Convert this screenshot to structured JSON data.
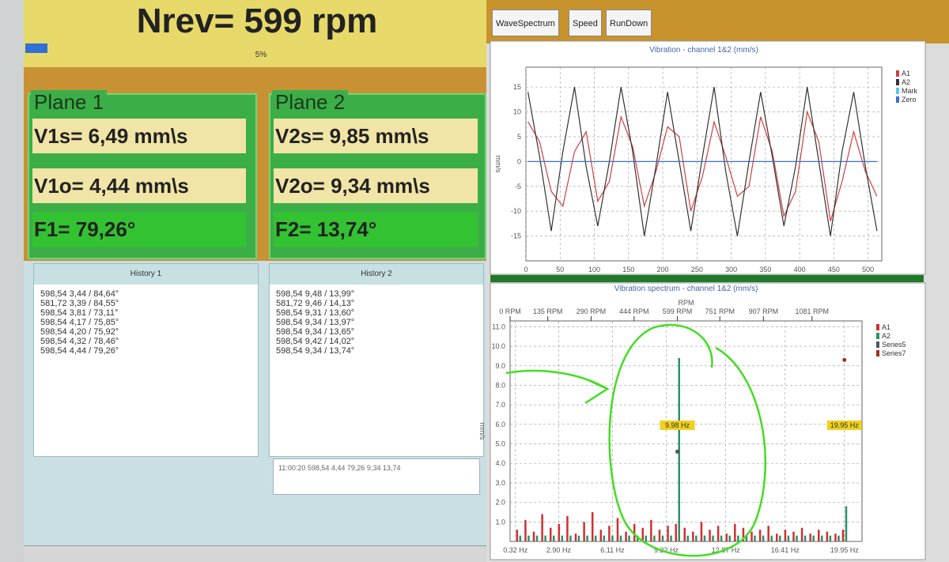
{
  "header": {
    "title": "Nrev= 599 rpm",
    "progress": "5%"
  },
  "planes": [
    {
      "title": "Plane 1",
      "vs": "V1s= 6,49 mm\\s",
      "vo": "V1o= 4,44 mm\\s",
      "f": "F1= 79,26°"
    },
    {
      "title": "Plane 2",
      "vs": "V2s= 9,85 mm\\s",
      "vo": "V2o= 9,34 mm\\s",
      "f": "F2= 13,74°"
    }
  ],
  "history": [
    {
      "title": "History 1",
      "entries": [
        "598,54 3,44 / 84,64°",
        "581,72 3,39 / 84,55°",
        "598,54 3,81 / 73,11°",
        "598,54 4,17 / 75,85°",
        "598,54 4,20 / 75,92°",
        "598,54 4,32 / 78,46°",
        "598,54 4,44 / 79,26°"
      ]
    },
    {
      "title": "History 2",
      "entries": [
        "598,54 9,48 / 13,99°",
        "581,72 9,46 / 14,13°",
        "598,54 9,31 / 13,60°",
        "598,54 9,34 / 13,97°",
        "598,54 9,34 / 13,65°",
        "598,54 9,42 / 14,02°",
        "598,54 9,34 / 13,74°"
      ]
    }
  ],
  "log": "11:00:20 598,54 4,44 79,26 9,34 13,74",
  "tabs": [
    "WaveSpectrum",
    "Speed",
    "RunDown"
  ],
  "chart_data": [
    {
      "type": "line",
      "title": "Vibration - channel 1&2 (mm/s)",
      "y_label": "mm/s",
      "x": [
        3,
        20,
        37,
        54,
        71,
        88,
        105,
        122,
        139,
        156,
        173,
        190,
        207,
        224,
        241,
        258,
        275,
        292,
        309,
        326,
        343,
        360,
        377,
        394,
        411,
        428,
        445,
        462,
        479,
        496,
        513
      ],
      "series": [
        {
          "name": "A1",
          "color": "#d04040",
          "values": [
            8,
            4,
            -6,
            -9,
            2,
            6,
            -8,
            -4,
            9,
            3,
            -9,
            -2,
            7,
            5,
            -10,
            -3,
            8,
            1,
            -7,
            -5,
            9,
            2,
            -11,
            -6,
            10,
            4,
            -12,
            -4,
            6,
            -2,
            -7
          ]
        },
        {
          "name": "A2",
          "color": "#333333",
          "values": [
            14,
            1,
            -14,
            2,
            15,
            -1,
            -13,
            0,
            15,
            2,
            -15,
            -1,
            14,
            0,
            -14,
            1,
            15,
            -2,
            -15,
            0,
            14,
            1,
            -13,
            -1,
            15,
            0,
            -15,
            2,
            14,
            -1,
            -14
          ]
        },
        {
          "name": "Mark",
          "color": "#5bc8e8",
          "values": [
            null,
            null,
            null,
            null,
            null,
            null,
            null,
            null,
            null,
            null,
            null,
            null,
            null,
            null,
            null,
            null,
            null,
            null,
            null,
            null,
            null,
            null,
            null,
            null,
            null,
            null,
            null,
            null,
            null,
            null,
            null
          ]
        },
        {
          "name": "Zero",
          "color": "#3a6fd0",
          "values": [
            0,
            0,
            0,
            0,
            0,
            0,
            0,
            0,
            0,
            0,
            0,
            0,
            0,
            0,
            0,
            0,
            0,
            0,
            0,
            0,
            0,
            0,
            0,
            0,
            0,
            0,
            0,
            0,
            0,
            0,
            0
          ]
        }
      ],
      "xlim": [
        0,
        520
      ],
      "xticks": [
        0,
        50,
        100,
        150,
        200,
        250,
        300,
        350,
        400,
        450,
        500
      ],
      "ylim": [
        -20,
        19
      ],
      "yticks": [
        -15,
        -10,
        -5,
        0,
        5,
        10,
        15
      ],
      "grid": true,
      "legend": "right"
    },
    {
      "type": "bar",
      "title": "Vibration spectrum - channel 1&2 (mm/s)",
      "y_label": "mm/s",
      "x2_label": "RPM",
      "x": [
        0.5,
        1.0,
        1.5,
        2.0,
        2.5,
        3.0,
        3.5,
        4.0,
        4.5,
        5.0,
        5.5,
        6.0,
        6.5,
        7.0,
        7.5,
        8.0,
        8.5,
        9.0,
        9.5,
        9.98,
        10.5,
        11.0,
        11.5,
        12.0,
        12.5,
        13.0,
        13.5,
        14.0,
        14.5,
        15.0,
        15.5,
        16.0,
        16.5,
        17.0,
        17.5,
        18.0,
        18.5,
        19.0,
        19.5,
        19.95
      ],
      "series": [
        {
          "name": "A1",
          "color": "#d03030",
          "kind": "bar",
          "values": [
            0.6,
            1.1,
            0.5,
            1.4,
            0.7,
            0.9,
            1.3,
            0.4,
            1.0,
            1.5,
            0.6,
            0.8,
            1.2,
            0.5,
            0.9,
            0.7,
            1.1,
            0.6,
            0.8,
            0.9,
            0.7,
            0.5,
            1.0,
            0.6,
            0.8,
            0.4,
            0.9,
            0.7,
            0.5,
            0.6,
            0.8,
            0.4,
            0.6,
            0.5,
            0.7,
            0.4,
            0.6,
            0.5,
            0.4,
            0.6
          ]
        },
        {
          "name": "A2",
          "color": "#2f8f6a",
          "kind": "bar",
          "values": [
            0.3,
            0.3,
            0.3,
            0.3,
            0.3,
            0.3,
            0.3,
            0.3,
            0.3,
            0.3,
            0.3,
            0.3,
            0.3,
            0.3,
            0.3,
            0.3,
            0.3,
            0.3,
            0.3,
            9.4,
            0.3,
            0.3,
            0.3,
            0.3,
            0.3,
            0.3,
            0.3,
            0.3,
            0.3,
            0.3,
            0.3,
            0.3,
            0.3,
            0.3,
            0.3,
            0.3,
            0.3,
            0.3,
            0.3,
            1.8
          ]
        },
        {
          "name": "Series5",
          "color": "#555555",
          "kind": "point",
          "values": [
            null,
            null,
            null,
            null,
            null,
            null,
            null,
            null,
            null,
            null,
            null,
            null,
            null,
            null,
            null,
            null,
            null,
            null,
            null,
            4.6,
            null,
            null,
            null,
            null,
            null,
            null,
            null,
            null,
            null,
            null,
            null,
            null,
            null,
            null,
            null,
            null,
            null,
            null,
            null,
            null
          ]
        },
        {
          "name": "Series7",
          "color": "#a03020",
          "kind": "point",
          "values": [
            null,
            null,
            null,
            null,
            null,
            null,
            null,
            null,
            null,
            null,
            null,
            null,
            null,
            null,
            null,
            null,
            null,
            null,
            null,
            null,
            null,
            null,
            null,
            null,
            null,
            null,
            null,
            null,
            null,
            null,
            null,
            null,
            null,
            null,
            null,
            null,
            null,
            null,
            null,
            9.3
          ]
        }
      ],
      "annotations": [
        "9.98 Hz",
        "19.95 Hz"
      ],
      "xlim": [
        0,
        21
      ],
      "xticks": [
        {
          "value": 0.32,
          "label": "0.32 Hz"
        },
        {
          "value": 2.9,
          "label": "2.90 Hz"
        },
        {
          "value": 6.11,
          "label": "6.11 Hz"
        },
        {
          "value": 9.32,
          "label": "9.32 Hz"
        },
        {
          "value": 12.87,
          "label": "12.87 Hz"
        },
        {
          "value": 16.41,
          "label": "16.41 Hz"
        },
        {
          "value": 19.95,
          "label": "19.95 Hz"
        }
      ],
      "x2lim": [
        0,
        1260
      ],
      "x2ticks": [
        {
          "value": 0,
          "label": "0 RPM"
        },
        {
          "value": 135,
          "label": "135 RPM"
        },
        {
          "value": 290,
          "label": "290 RPM"
        },
        {
          "value": 444,
          "label": "444 RPM"
        },
        {
          "value": 599,
          "label": "599 RPM"
        },
        {
          "value": 751,
          "label": "751 RPM"
        },
        {
          "value": 907,
          "label": "907 RPM"
        },
        {
          "value": 1081,
          "label": "1081 RPM"
        }
      ],
      "ylim": [
        0,
        11.3
      ],
      "yticks": [
        {
          "value": 1,
          "label": "1.0"
        },
        {
          "value": 2,
          "label": "2.0"
        },
        {
          "value": 3,
          "label": "3.0"
        },
        {
          "value": 4,
          "label": "4.0"
        },
        {
          "value": 5,
          "label": "5.0"
        },
        {
          "value": 6,
          "label": "6.0"
        },
        {
          "value": 7,
          "label": "7.0"
        },
        {
          "value": 8,
          "label": "8.0"
        },
        {
          "value": 9,
          "label": "9.0"
        },
        {
          "value": 10,
          "label": "10.0"
        },
        {
          "value": 11,
          "label": "11.0"
        }
      ],
      "grid": true,
      "legend": "right"
    }
  ]
}
